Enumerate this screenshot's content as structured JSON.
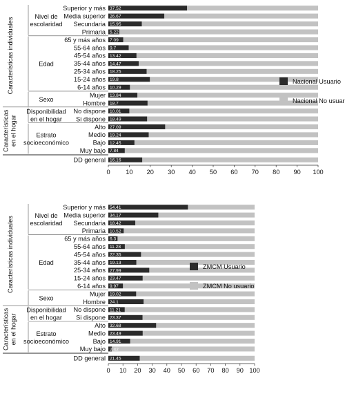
{
  "chart_data": [
    {
      "type": "bar",
      "stacked": true,
      "orientation": "horizontal",
      "xlim": [
        0,
        100
      ],
      "xticks": [
        0,
        10,
        20,
        30,
        40,
        50,
        60,
        70,
        80,
        90,
        100
      ],
      "grid": false,
      "legend_position": "right",
      "legend": [
        {
          "label": "Nacional Usuario",
          "color": "#2b2b2b"
        },
        {
          "label": "Nacional No usuario",
          "color": "#c2c2c2"
        }
      ],
      "sections": [
        {
          "label": "Características individuales",
          "groups": [
            {
              "label": "Nivel de escolaridad",
              "rows": [
                {
                  "label": "Superior y más",
                  "value": 37.52
                },
                {
                  "label": "Media superior",
                  "value": 26.67
                },
                {
                  "label": "Secundaria",
                  "value": 15.95
                },
                {
                  "label": "Primaria",
                  "value": 5.22
                }
              ]
            },
            {
              "label": "Edad",
              "rows": [
                {
                  "label": "65 y más años",
                  "value": 7.09
                },
                {
                  "label": "55-64 años",
                  "value": 9.7
                },
                {
                  "label": "45-54 años",
                  "value": 13.42
                },
                {
                  "label": "35-44 años",
                  "value": 14.47
                },
                {
                  "label": "25-34 años",
                  "value": 18.25
                },
                {
                  "label": "15-24 años",
                  "value": 19.8
                },
                {
                  "label": "6-14 años",
                  "value": 10.29
                }
              ]
            },
            {
              "label": "Sexo",
              "rows": [
                {
                  "label": "Mujer",
                  "value": 13.84
                },
                {
                  "label": "Hombre",
                  "value": 18.7
                }
              ]
            }
          ]
        },
        {
          "label": "Características en el hogar",
          "groups": [
            {
              "label": "Disponibilidad en el hogar",
              "rows": [
                {
                  "label": "No dispone",
                  "value": 10.01
                },
                {
                  "label": "Si dispone",
                  "value": 18.49
                }
              ]
            },
            {
              "label": "Estrato socioeconómico",
              "rows": [
                {
                  "label": "Alto",
                  "value": 27.09
                },
                {
                  "label": "Medio",
                  "value": 19.24
                },
                {
                  "label": "Bajo",
                  "value": 12.45
                },
                {
                  "label": "Muy bajo",
                  "value": 7.84
                }
              ]
            }
          ]
        }
      ],
      "general": {
        "label": "DD general",
        "value": 16.16
      }
    },
    {
      "type": "bar",
      "stacked": true,
      "orientation": "horizontal",
      "xlim": [
        0,
        100
      ],
      "xticks": [
        0,
        10,
        20,
        30,
        40,
        50,
        60,
        70,
        80,
        90,
        100
      ],
      "grid": false,
      "legend_position": "right",
      "legend": [
        {
          "label": "ZMCM Usuario",
          "color": "#2b2b2b"
        },
        {
          "label": "ZMCM No usuario",
          "color": "#c2c2c2"
        }
      ],
      "sections": [
        {
          "label": "Características individuales",
          "groups": [
            {
              "label": "Nivel de escolaridad",
              "rows": [
                {
                  "label": "Superior y más",
                  "value": 54.41
                },
                {
                  "label": "Media superior",
                  "value": 34.17
                },
                {
                  "label": "Secundaria",
                  "value": 18.42
                },
                {
                  "label": "Primaria",
                  "value": 10.52
                }
              ]
            },
            {
              "label": "Edad",
              "rows": [
                {
                  "label": "65 y más años",
                  "value": 6.3
                },
                {
                  "label": "55-64 años",
                  "value": 11.28
                },
                {
                  "label": "45-54 años",
                  "value": 22.35
                },
                {
                  "label": "35-44 años",
                  "value": 19.13
                },
                {
                  "label": "25-34 años",
                  "value": 27.99
                },
                {
                  "label": "15-24 años",
                  "value": 23.47
                },
                {
                  "label": "6-14 años",
                  "value": 9.97
                }
              ]
            },
            {
              "label": "Sexo",
              "rows": [
                {
                  "label": "Mujer",
                  "value": 19.02
                },
                {
                  "label": "Hombre",
                  "value": 24.1
                }
              ]
            }
          ]
        },
        {
          "label": "Características en el hogar",
          "groups": [
            {
              "label": "Disponibilidad en el hogar",
              "rows": [
                {
                  "label": "No dispone",
                  "value": 11.21
                },
                {
                  "label": "Si dispone",
                  "value": 23.37
                }
              ]
            },
            {
              "label": "Estrato socioeconómico",
              "rows": [
                {
                  "label": "Alto",
                  "value": 32.68
                },
                {
                  "label": "Medio",
                  "value": 23.49
                },
                {
                  "label": "Bajo",
                  "value": 14.91
                },
                {
                  "label": "Muy bajo",
                  "value": 2.42
                }
              ]
            }
          ]
        }
      ],
      "general": {
        "label": "DD general",
        "value": 21.45
      }
    }
  ]
}
